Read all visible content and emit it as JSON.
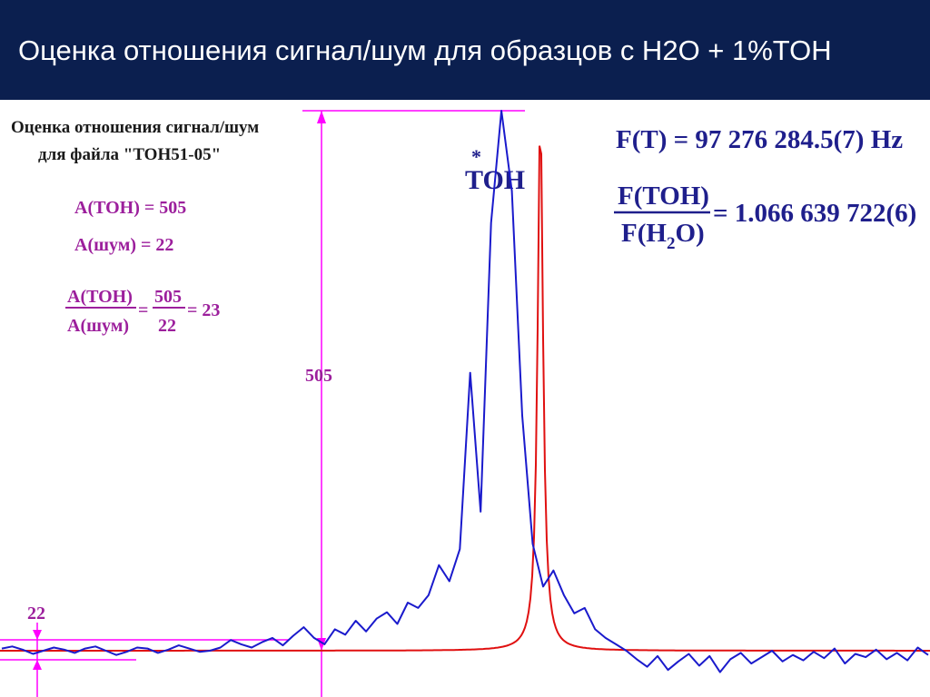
{
  "header": {
    "title": "Оценка отношения сигнал/шум для образцов с H2O + 1%TOH"
  },
  "notes": {
    "title_line1": "Оценка отношения сигнал/шум",
    "title_line2": "для файла \"TOH51-05\"",
    "a_toh": "A(TOH) = 505",
    "a_noise": "A(шум) = 22",
    "ratio_num": "A(TOH)",
    "ratio_den": "A(шум)",
    "ratio_eq1": "=",
    "ratio_mid_num": "505",
    "ratio_mid_den": "22",
    "ratio_result": "= 23"
  },
  "freq": {
    "ft": "F(T) = 97 276 284.5(7) Hz",
    "ratio_num": "F(TOH)",
    "ratio_den_pre": "F(H",
    "ratio_den_sub": "2",
    "ratio_den_post": "O)",
    "ratio_value": "= 1.066 639 722(6)"
  },
  "annotations": {
    "peak_label": "TOH",
    "peak_star": "*",
    "amp_label": "505",
    "noise_label": "22"
  },
  "colors": {
    "header_bg": "#0b1f4f",
    "signal": "#1a1acc",
    "fit": "#e01010",
    "annotation": "#ff00ff",
    "note_text": "#9c1f9c",
    "freq_text": "#1f1f8c"
  },
  "chart_data": {
    "type": "line",
    "title": "",
    "xlabel": "",
    "ylabel": "",
    "grid": false,
    "legend": "none",
    "peak_amplitude": 505,
    "noise_amplitude": 22,
    "snr": 23,
    "series": [
      {
        "role": "measured-spectrum",
        "color": "#1a1acc",
        "values": [
          2,
          4,
          1,
          -3,
          0,
          3,
          1,
          -2,
          2,
          4,
          0,
          -4,
          -1,
          3,
          2,
          -2,
          1,
          5,
          2,
          -1,
          0,
          3,
          10,
          6,
          3,
          8,
          12,
          5,
          14,
          22,
          12,
          6,
          20,
          15,
          28,
          18,
          30,
          36,
          25,
          45,
          40,
          52,
          80,
          65,
          95,
          260,
          130,
          400,
          505,
          430,
          220,
          100,
          60,
          75,
          52,
          35,
          40,
          20,
          12,
          6,
          0,
          -8,
          -15,
          -5,
          -18,
          -10,
          -3,
          -14,
          -5,
          -20,
          -8,
          -2,
          -12,
          -6,
          0,
          -10,
          -4,
          -9,
          -1,
          -7,
          2,
          -12,
          -3,
          -6,
          1,
          -8,
          -2,
          -9,
          3,
          -4
        ]
      },
      {
        "role": "lorentzian-fit",
        "color": "#e01010",
        "center_fraction": 0.581,
        "amplitude": 505,
        "hwhm_fraction": 0.0035
      }
    ]
  }
}
